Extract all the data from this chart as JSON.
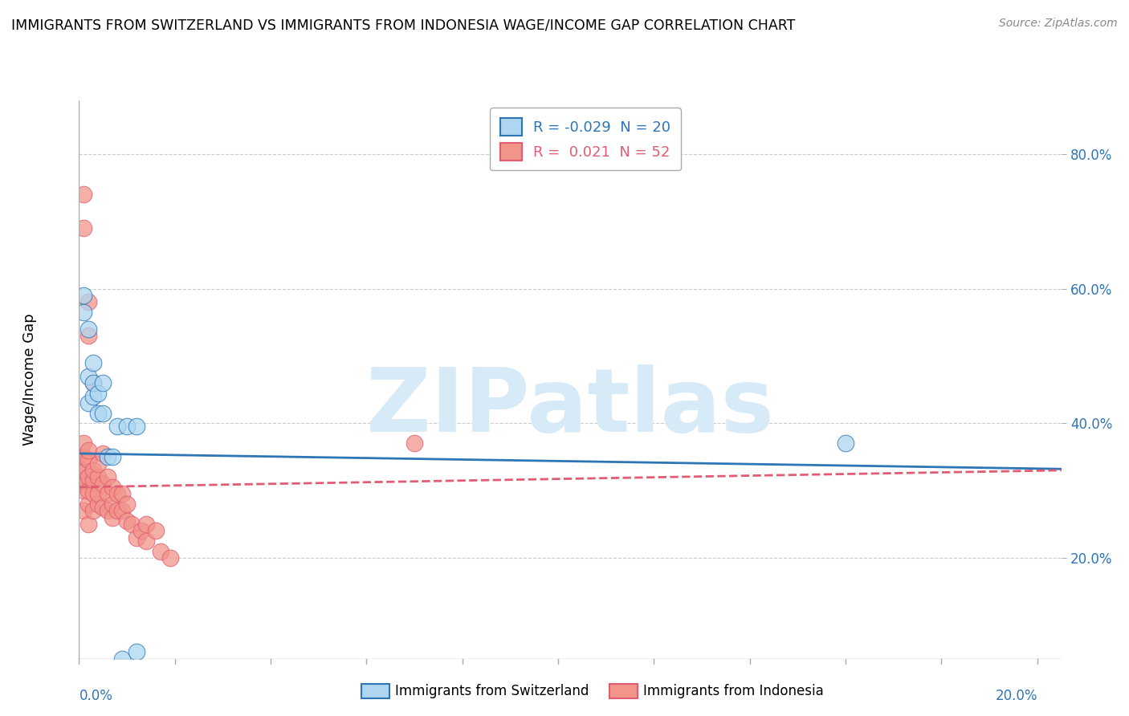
{
  "title": "IMMIGRANTS FROM SWITZERLAND VS IMMIGRANTS FROM INDONESIA WAGE/INCOME GAP CORRELATION CHART",
  "source": "Source: ZipAtlas.com",
  "ylabel": "Wage/Income Gap",
  "right_ytick_vals": [
    0.2,
    0.4,
    0.6,
    0.8
  ],
  "legend_switzerland": "R = -0.029  N = 20",
  "legend_indonesia": "R =  0.021  N = 52",
  "color_switzerland": "#AED6F1",
  "color_indonesia": "#F1948A",
  "color_line_switzerland": "#2E75B6",
  "color_line_indonesia": "#E05C72",
  "watermark": "ZIPatlas",
  "watermark_color": "#D6EAF8",
  "switzerland_x": [
    0.001,
    0.001,
    0.002,
    0.002,
    0.002,
    0.003,
    0.003,
    0.003,
    0.004,
    0.004,
    0.005,
    0.005,
    0.006,
    0.007,
    0.008,
    0.009,
    0.01,
    0.012,
    0.16,
    0.012
  ],
  "switzerland_y": [
    0.565,
    0.59,
    0.43,
    0.47,
    0.54,
    0.44,
    0.46,
    0.49,
    0.415,
    0.445,
    0.415,
    0.46,
    0.35,
    0.35,
    0.395,
    0.05,
    0.395,
    0.395,
    0.37,
    0.06
  ],
  "indonesia_x": [
    0.0,
    0.0,
    0.0,
    0.001,
    0.001,
    0.001,
    0.001,
    0.001,
    0.001,
    0.002,
    0.002,
    0.002,
    0.002,
    0.002,
    0.002,
    0.003,
    0.003,
    0.003,
    0.003,
    0.004,
    0.004,
    0.004,
    0.004,
    0.005,
    0.005,
    0.005,
    0.006,
    0.006,
    0.006,
    0.007,
    0.007,
    0.007,
    0.008,
    0.008,
    0.009,
    0.009,
    0.01,
    0.01,
    0.011,
    0.012,
    0.013,
    0.014,
    0.014,
    0.016,
    0.017,
    0.019,
    0.07,
    0.001,
    0.001,
    0.002,
    0.002,
    0.003
  ],
  "indonesia_y": [
    0.31,
    0.33,
    0.35,
    0.27,
    0.3,
    0.315,
    0.33,
    0.35,
    0.37,
    0.25,
    0.28,
    0.3,
    0.32,
    0.345,
    0.36,
    0.27,
    0.295,
    0.315,
    0.33,
    0.28,
    0.295,
    0.32,
    0.34,
    0.275,
    0.31,
    0.355,
    0.27,
    0.295,
    0.32,
    0.26,
    0.28,
    0.305,
    0.27,
    0.295,
    0.27,
    0.295,
    0.255,
    0.28,
    0.25,
    0.23,
    0.24,
    0.225,
    0.25,
    0.24,
    0.21,
    0.2,
    0.37,
    0.74,
    0.69,
    0.53,
    0.58,
    0.46
  ],
  "xlim": [
    0.0,
    0.205
  ],
  "ylim": [
    0.05,
    0.88
  ],
  "figsize": [
    14.06,
    8.92
  ],
  "dpi": 100,
  "sw_trend_x0": 0.0,
  "sw_trend_x1": 0.205,
  "sw_trend_y0": 0.355,
  "sw_trend_y1": 0.332,
  "in_trend_x0": 0.0,
  "in_trend_x1": 0.205,
  "in_trend_y0": 0.305,
  "in_trend_y1": 0.33
}
